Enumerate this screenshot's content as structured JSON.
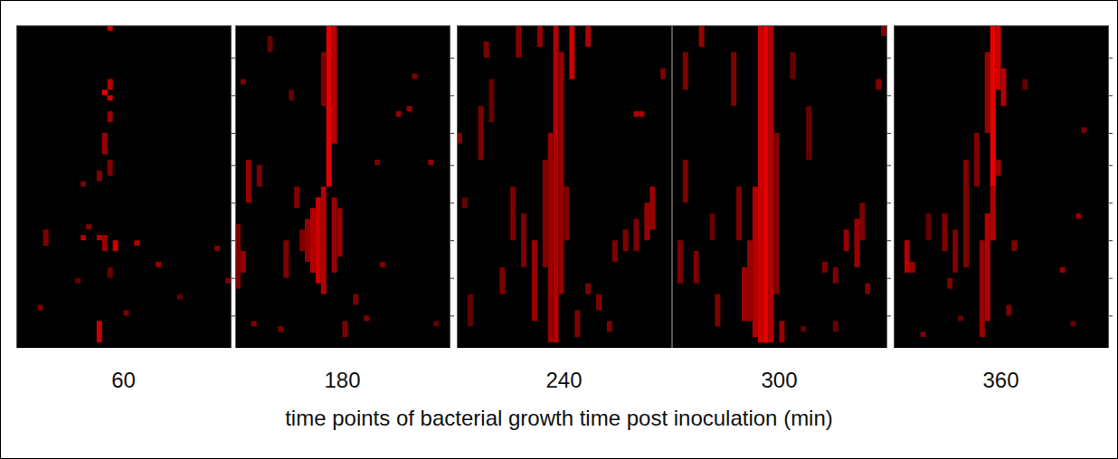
{
  "chart_data": {
    "type": "heatmap",
    "xlabel": "time points of bacterial growth time post inoculation (min)",
    "color": "#ff0000",
    "tick_labels": false,
    "panels": [
      {
        "title": "60",
        "xlim": [
          0,
          40
        ],
        "ylim": [
          0,
          60
        ],
        "yticks": [
          6,
          13,
          20,
          26,
          33,
          40,
          47,
          54
        ],
        "clim": [
          0,
          1
        ],
        "cells": [
          [
            17,
            0,
            1,
            0.8
          ],
          [
            17,
            10,
            12,
            0.7
          ],
          [
            16,
            12,
            13,
            0.9
          ],
          [
            17,
            13,
            14,
            0.8
          ],
          [
            17,
            16,
            18,
            0.6
          ],
          [
            16,
            20,
            24,
            0.6
          ],
          [
            17,
            25,
            28,
            0.5
          ],
          [
            15,
            27,
            29,
            0.5
          ],
          [
            12,
            39,
            40,
            0.7
          ],
          [
            15,
            39,
            40,
            0.7
          ],
          [
            16,
            39,
            42,
            0.6
          ],
          [
            18,
            40,
            42,
            0.8
          ],
          [
            22,
            40,
            41,
            0.7
          ],
          [
            12,
            29,
            30,
            0.5
          ],
          [
            5,
            38,
            41,
            0.5
          ],
          [
            26,
            44,
            45,
            0.6
          ],
          [
            37,
            41,
            42,
            0.5
          ],
          [
            39,
            47,
            48,
            0.5
          ],
          [
            17,
            45,
            47,
            0.4
          ],
          [
            4,
            52,
            53,
            0.5
          ],
          [
            15,
            55,
            59,
            0.8
          ],
          [
            11,
            47,
            48,
            0.4
          ],
          [
            13,
            37,
            38,
            0.5
          ],
          [
            20,
            53,
            54,
            0.5
          ],
          [
            30,
            50,
            51,
            0.4
          ]
        ]
      },
      {
        "title": "180",
        "xlim": [
          0,
          40
        ],
        "ylim": [
          0,
          60
        ],
        "yticks": [
          6,
          13,
          20,
          26,
          33,
          40,
          47,
          54
        ],
        "clim": [
          0,
          1
        ],
        "cells": [
          [
            17,
            0,
            30,
            0.9
          ],
          [
            18,
            0,
            22,
            0.7
          ],
          [
            16,
            5,
            15,
            0.5
          ],
          [
            15,
            32,
            48,
            0.8
          ],
          [
            14,
            34,
            46,
            0.7
          ],
          [
            13,
            36,
            44,
            0.6
          ],
          [
            16,
            30,
            50,
            0.7
          ],
          [
            18,
            32,
            46,
            0.6
          ],
          [
            19,
            34,
            43,
            0.6
          ],
          [
            12,
            38,
            42,
            0.5
          ],
          [
            11,
            30,
            34,
            0.5
          ],
          [
            9,
            40,
            47,
            0.5
          ],
          [
            2,
            25,
            33,
            0.6
          ],
          [
            4,
            26,
            30,
            0.5
          ],
          [
            0,
            37,
            49,
            0.5
          ],
          [
            1,
            42,
            46,
            0.6
          ],
          [
            6,
            2,
            5,
            0.4
          ],
          [
            10,
            12,
            14,
            0.4
          ],
          [
            30,
            16,
            17,
            0.6
          ],
          [
            32,
            15,
            16,
            0.6
          ],
          [
            33,
            9,
            10,
            0.5
          ],
          [
            36,
            25,
            26,
            0.6
          ],
          [
            27,
            44,
            45,
            0.5
          ],
          [
            22,
            50,
            52,
            0.5
          ],
          [
            24,
            54,
            55,
            0.5
          ],
          [
            37,
            55,
            56,
            0.4
          ],
          [
            8,
            56,
            57,
            0.5
          ],
          [
            3,
            55,
            56,
            0.5
          ],
          [
            20,
            55,
            58,
            0.5
          ],
          [
            26,
            25,
            26,
            0.5
          ],
          [
            1,
            10,
            11,
            0.5
          ]
        ]
      },
      {
        "title": "240",
        "xlim": [
          0,
          40
        ],
        "ylim": [
          0,
          60
        ],
        "yticks": [
          6,
          13,
          20,
          26,
          33,
          40,
          47,
          54
        ],
        "clim": [
          0,
          1
        ],
        "cells": [
          [
            18,
            0,
            59,
            0.7
          ],
          [
            19,
            5,
            50,
            0.6
          ],
          [
            17,
            20,
            59,
            0.6
          ],
          [
            16,
            25,
            45,
            0.5
          ],
          [
            20,
            30,
            40,
            0.5
          ],
          [
            21,
            0,
            10,
            0.8
          ],
          [
            24,
            0,
            4,
            0.7
          ],
          [
            15,
            0,
            4,
            0.6
          ],
          [
            11,
            0,
            6,
            0.5
          ],
          [
            5,
            3,
            6,
            0.5
          ],
          [
            0,
            20,
            22,
            0.5
          ],
          [
            4,
            15,
            25,
            0.5
          ],
          [
            6,
            10,
            18,
            0.4
          ],
          [
            10,
            30,
            40,
            0.5
          ],
          [
            12,
            35,
            45,
            0.5
          ],
          [
            14,
            40,
            55,
            0.6
          ],
          [
            8,
            45,
            50,
            0.5
          ],
          [
            2,
            50,
            56,
            0.4
          ],
          [
            33,
            16,
            17,
            0.7
          ],
          [
            34,
            16,
            17,
            0.7
          ],
          [
            35,
            33,
            40,
            0.6
          ],
          [
            36,
            30,
            38,
            0.6
          ],
          [
            33,
            36,
            42,
            0.5
          ],
          [
            31,
            38,
            42,
            0.5
          ],
          [
            29,
            40,
            44,
            0.5
          ],
          [
            24,
            48,
            50,
            0.5
          ],
          [
            26,
            50,
            53,
            0.5
          ],
          [
            28,
            55,
            57,
            0.5
          ],
          [
            38,
            8,
            10,
            0.5
          ],
          [
            1,
            32,
            34,
            0.4
          ],
          [
            22,
            53,
            58,
            0.5
          ]
        ]
      },
      {
        "title": "300",
        "xlim": [
          0,
          40
        ],
        "ylim": [
          0,
          60
        ],
        "yticks": [
          6,
          13,
          20,
          26,
          33,
          40,
          47,
          54
        ],
        "clim": [
          0,
          1
        ],
        "cells": [
          [
            16,
            0,
            59,
            0.8
          ],
          [
            17,
            0,
            59,
            0.9
          ],
          [
            18,
            0,
            59,
            0.7
          ],
          [
            15,
            30,
            58,
            0.7
          ],
          [
            14,
            40,
            55,
            0.6
          ],
          [
            19,
            20,
            50,
            0.5
          ],
          [
            13,
            45,
            55,
            0.6
          ],
          [
            11,
            5,
            15,
            0.5
          ],
          [
            12,
            30,
            40,
            0.5
          ],
          [
            5,
            0,
            4,
            0.6
          ],
          [
            2,
            5,
            12,
            0.5
          ],
          [
            2,
            25,
            33,
            0.5
          ],
          [
            1,
            40,
            48,
            0.5
          ],
          [
            4,
            42,
            48,
            0.5
          ],
          [
            8,
            50,
            56,
            0.5
          ],
          [
            7,
            35,
            40,
            0.4
          ],
          [
            22,
            5,
            10,
            0.4
          ],
          [
            25,
            15,
            25,
            0.4
          ],
          [
            32,
            38,
            42,
            0.6
          ],
          [
            34,
            36,
            45,
            0.6
          ],
          [
            35,
            33,
            40,
            0.5
          ],
          [
            30,
            45,
            48,
            0.5
          ],
          [
            28,
            44,
            46,
            0.5
          ],
          [
            36,
            48,
            50,
            0.5
          ],
          [
            30,
            55,
            57,
            0.4
          ],
          [
            38,
            10,
            12,
            0.5
          ],
          [
            39,
            0,
            2,
            0.5
          ],
          [
            24,
            56,
            57,
            0.4
          ],
          [
            20,
            55,
            59,
            0.6
          ]
        ]
      },
      {
        "title": "360",
        "xlim": [
          0,
          40
        ],
        "ylim": [
          0,
          60
        ],
        "yticks": [
          6,
          13,
          20,
          26,
          33,
          40,
          47,
          54
        ],
        "clim": [
          0,
          1
        ],
        "cells": [
          [
            18,
            0,
            30,
            0.9
          ],
          [
            19,
            0,
            12,
            0.8
          ],
          [
            17,
            5,
            20,
            0.6
          ],
          [
            20,
            8,
            15,
            0.7
          ],
          [
            18,
            30,
            40,
            0.7
          ],
          [
            17,
            35,
            55,
            0.7
          ],
          [
            16,
            40,
            58,
            0.6
          ],
          [
            15,
            20,
            30,
            0.5
          ],
          [
            13,
            25,
            45,
            0.5
          ],
          [
            11,
            38,
            46,
            0.5
          ],
          [
            9,
            35,
            42,
            0.5
          ],
          [
            6,
            35,
            40,
            0.4
          ],
          [
            2,
            40,
            46,
            0.7
          ],
          [
            3,
            44,
            46,
            0.6
          ],
          [
            19,
            25,
            28,
            0.6
          ],
          [
            22,
            40,
            42,
            0.5
          ],
          [
            34,
            35,
            36,
            0.6
          ],
          [
            31,
            45,
            46,
            0.6
          ],
          [
            35,
            19,
            20,
            0.5
          ],
          [
            33,
            55,
            56,
            0.4
          ],
          [
            10,
            47,
            49,
            0.5
          ],
          [
            5,
            57,
            58,
            0.5
          ],
          [
            12,
            54,
            55,
            0.4
          ],
          [
            21,
            52,
            54,
            0.5
          ],
          [
            24,
            10,
            12,
            0.4
          ]
        ]
      }
    ]
  }
}
